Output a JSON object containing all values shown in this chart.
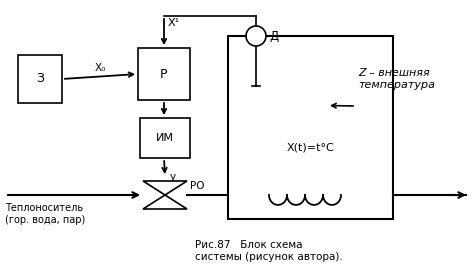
{
  "bg_color": "#ffffff",
  "line_color": "#000000",
  "text_color": "#000000",
  "label_З": "З",
  "label_Р": "Р",
  "label_ИМ": "ИМ",
  "label_X0": "X₀",
  "label_X1": "X¹",
  "label_у": "у",
  "label_РО": "РО",
  "label_Д": "Д",
  "label_Xt": "X(t)=t°C",
  "label_Z": "Z – внешняя\nтемпература",
  "label_heat": "Теплоноситель\n(гор. вода, пар)",
  "caption": "Рис.87   Блок схема\nсистемы (рисунок автора)."
}
